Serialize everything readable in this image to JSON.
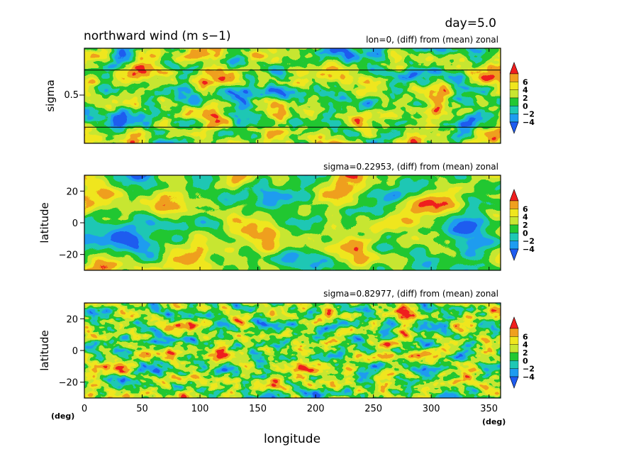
{
  "header": {
    "day": "day=5.0",
    "title": "northward wind (m s−1)"
  },
  "colors": {
    "levels": [
      "#1e5cf0",
      "#1e9cf0",
      "#1ec8b4",
      "#22c832",
      "#c8e632",
      "#f0e61e",
      "#f0a01e",
      "#f01e1e"
    ]
  },
  "chart_data": [
    {
      "type": "heatmap",
      "subtitle": "lon=0, (diff) from (mean) zonal",
      "ylabel": "sigma",
      "xlim": [
        0,
        360
      ],
      "ylim": [
        0,
        1
      ],
      "yticks": [
        "0.5"
      ],
      "hlines": [
        0.22953,
        0.82977
      ],
      "grid": false,
      "colorbar": {
        "ticks": [
          "6",
          "4",
          "2",
          "0",
          "−2",
          "−4"
        ],
        "levels": [
          -4,
          -2,
          0,
          2,
          4,
          6
        ]
      }
    },
    {
      "type": "heatmap",
      "subtitle": "sigma=0.22953, (diff) from (mean) zonal",
      "ylabel": "latitude",
      "xlim": [
        0,
        360
      ],
      "ylim": [
        -30,
        30
      ],
      "yticks": [
        "20",
        "0",
        "−20"
      ],
      "grid": false,
      "colorbar": {
        "ticks": [
          "6",
          "4",
          "2",
          "0",
          "−2",
          "−4"
        ],
        "levels": [
          -4,
          -2,
          0,
          2,
          4,
          6
        ]
      }
    },
    {
      "type": "heatmap",
      "subtitle": "sigma=0.82977, (diff) from (mean) zonal",
      "ylabel": "latitude",
      "xlabel": "longitude",
      "xunit_left": "(deg)",
      "xunit_right": "(deg)",
      "xlim": [
        0,
        360
      ],
      "ylim": [
        -30,
        30
      ],
      "xticks": [
        "0",
        "50",
        "100",
        "150",
        "200",
        "250",
        "300",
        "350"
      ],
      "yticks": [
        "20",
        "0",
        "−20"
      ],
      "grid": false,
      "colorbar": {
        "ticks": [
          "6",
          "4",
          "2",
          "0",
          "−2",
          "−4"
        ],
        "levels": [
          -4,
          -2,
          0,
          2,
          4,
          6
        ]
      }
    }
  ]
}
